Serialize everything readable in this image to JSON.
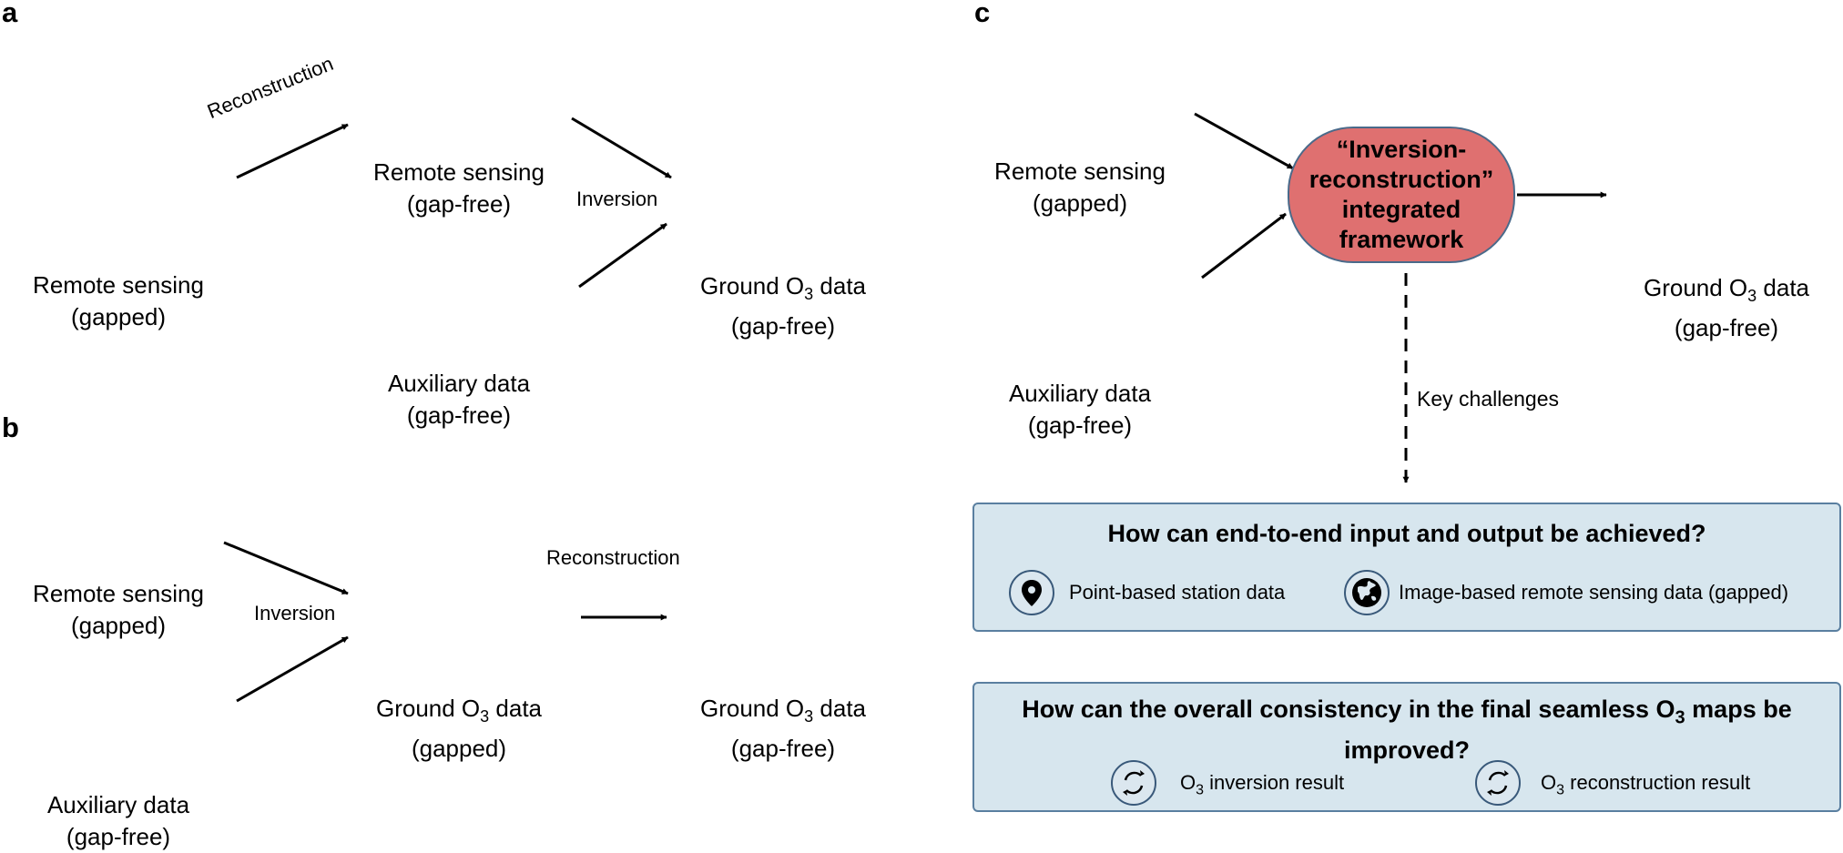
{
  "panels": {
    "a": "a",
    "b": "b",
    "c": "c"
  },
  "labels": {
    "remote_gapped": [
      "Remote sensing",
      "(gapped)"
    ],
    "remote_gapfree": [
      "Remote sensing",
      "(gap-free)"
    ],
    "aux_gapfree": [
      "Auxiliary data",
      "(gap-free)"
    ],
    "ground_gapfree": [
      "Ground O",
      "3",
      " data",
      "(gap-free)"
    ],
    "ground_gapped": [
      "Ground O",
      "3",
      " data",
      "(gapped)"
    ],
    "reconstruction": "Reconstruction",
    "inversion": "Inversion",
    "key_challenges": "Key challenges"
  },
  "framework": [
    "“Inversion-",
    "reconstruction”",
    "integrated",
    "framework"
  ],
  "challenges": {
    "q1": {
      "title": "How can end-to-end input and output be achieved?",
      "item1": "Point-based station data",
      "item2": "Image-based remote sensing data (gapped)",
      "icon1": "location-pin-icon",
      "icon2": "globe-icon"
    },
    "q2": {
      "title_part1": "How can the overall consistency in the final seamless O",
      "title_sub": "3",
      "title_part2": " maps be",
      "title_line2": "improved?",
      "item1_pre": "O",
      "item1_sub": "3",
      "item1_post": " inversion result",
      "item2_pre": "O",
      "item2_sub": "3",
      "item2_post": " reconstruction result",
      "icon": "refresh-cycle-icon"
    }
  },
  "colors": {
    "framework_fill": "#df7070",
    "challenge_box_fill": "#d7e6ee",
    "map_border": "#3e5f86"
  }
}
